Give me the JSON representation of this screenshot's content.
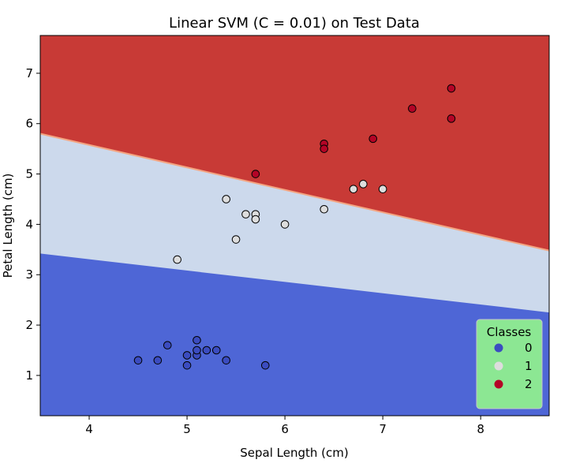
{
  "chart_data": {
    "type": "scatter",
    "title": "Linear SVM (C = 0.01) on Test Data",
    "xlabel": "Sepal Length (cm)",
    "ylabel": "Petal Length (cm)",
    "xlim": [
      3.5,
      8.7
    ],
    "ylim": [
      0.2,
      7.75
    ],
    "xticks": [
      4,
      5,
      6,
      7,
      8
    ],
    "yticks": [
      1,
      2,
      3,
      4,
      5,
      6,
      7
    ],
    "grid": false,
    "legend": {
      "title": "Classes",
      "placement": "bottom-right",
      "background": "#90ee90",
      "entries": [
        {
          "label": "0",
          "color": "#3b4cc0"
        },
        {
          "label": "1",
          "color": "#dddddd"
        },
        {
          "label": "2",
          "color": "#b40426"
        }
      ]
    },
    "decision_regions": [
      {
        "class": "0",
        "color": "#4e66d6",
        "boundary_upper": {
          "x": [
            3.5,
            8.7
          ],
          "y": [
            3.42,
            2.25
          ]
        }
      },
      {
        "class": "1",
        "color": "#ccd9ec",
        "boundary_upper": {
          "x": [
            3.5,
            8.7
          ],
          "y": [
            5.8,
            3.48
          ]
        }
      },
      {
        "class": "2",
        "color": "#c83a36"
      }
    ],
    "series": [
      {
        "name": "0",
        "color": "#3b4cc0",
        "points": [
          [
            4.5,
            1.3
          ],
          [
            4.7,
            1.3
          ],
          [
            4.8,
            1.6
          ],
          [
            5.0,
            1.2
          ],
          [
            5.0,
            1.4
          ],
          [
            5.1,
            1.4
          ],
          [
            5.1,
            1.5
          ],
          [
            5.1,
            1.7
          ],
          [
            5.2,
            1.5
          ],
          [
            5.3,
            1.5
          ],
          [
            5.4,
            1.3
          ],
          [
            5.8,
            1.2
          ]
        ]
      },
      {
        "name": "1",
        "color": "#dddddd",
        "points": [
          [
            4.9,
            3.3
          ],
          [
            5.4,
            4.5
          ],
          [
            5.5,
            3.7
          ],
          [
            5.6,
            4.2
          ],
          [
            5.7,
            4.2
          ],
          [
            5.7,
            4.1
          ],
          [
            6.0,
            4.0
          ],
          [
            6.4,
            4.3
          ],
          [
            6.7,
            4.7
          ],
          [
            6.8,
            4.8
          ],
          [
            7.0,
            4.7
          ]
        ]
      },
      {
        "name": "2",
        "color": "#b40426",
        "points": [
          [
            5.7,
            5.0
          ],
          [
            6.4,
            5.6
          ],
          [
            6.4,
            5.5
          ],
          [
            6.9,
            5.7
          ],
          [
            7.3,
            6.3
          ],
          [
            7.7,
            6.7
          ],
          [
            7.7,
            6.1
          ]
        ]
      }
    ]
  }
}
